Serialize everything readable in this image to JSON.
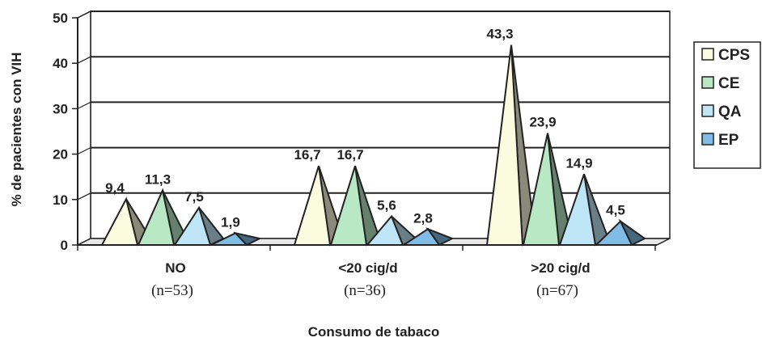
{
  "chart_data": {
    "type": "bar",
    "xlabel": "Consumo de tabaco",
    "ylabel": "% de pacientes con VIH",
    "ylim": [
      0,
      50
    ],
    "yticks": [
      "0",
      "10",
      "20",
      "30",
      "40",
      "50"
    ],
    "grid": true,
    "legend_position": "right",
    "categories": [
      "NO",
      "<20 cig/d",
      ">20 cig/d"
    ],
    "category_counts": [
      "(n=53)",
      "(n=36)",
      "(n=67)"
    ],
    "series": [
      {
        "name": "CPS",
        "color": "#fbfbe0",
        "values": [
          9.4,
          16.7,
          43.3
        ],
        "labels": [
          "9,4",
          "16,7",
          "43,3"
        ]
      },
      {
        "name": "CE",
        "color": "#b8e8c4",
        "values": [
          11.3,
          16.7,
          23.9
        ],
        "labels": [
          "11,3",
          "16,7",
          "23,9"
        ]
      },
      {
        "name": "QA",
        "color": "#bfe6f6",
        "values": [
          7.5,
          5.6,
          14.9
        ],
        "labels": [
          "7,5",
          "5,6",
          "14,9"
        ]
      },
      {
        "name": "EP",
        "color": "#7fbde6",
        "values": [
          1.9,
          2.8,
          4.5
        ],
        "labels": [
          "1,9",
          "2,8",
          "4,5"
        ]
      }
    ]
  }
}
